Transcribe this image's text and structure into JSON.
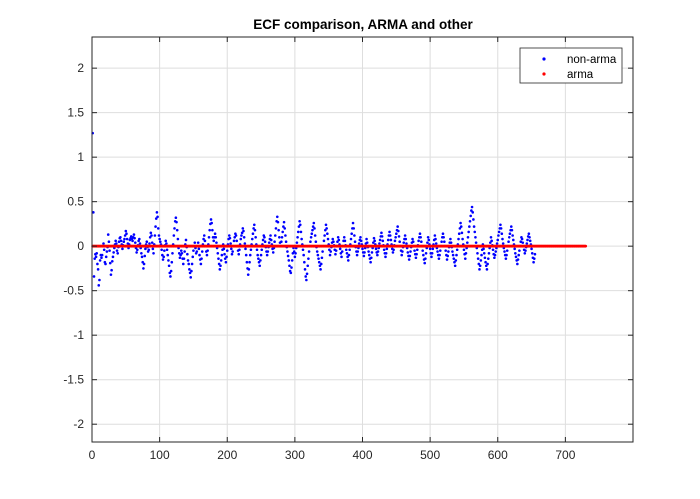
{
  "chart_data": {
    "type": "scatter",
    "title": "ECF comparison, ARMA and other",
    "xlabel": "",
    "ylabel": "",
    "xlim": [
      0,
      800
    ],
    "ylim": [
      -2.2,
      2.35
    ],
    "xticks": [
      0,
      100,
      200,
      300,
      400,
      500,
      600,
      700
    ],
    "yticks": [
      -2,
      -1.5,
      -1,
      -0.5,
      0,
      0.5,
      1,
      1.5,
      2
    ],
    "grid": true,
    "legend_position": "top-right",
    "series": [
      {
        "name": "non-arma",
        "color": "#0000ff",
        "marker": "dot",
        "x_start": 1,
        "x_step": 1,
        "values": [
          1.27,
          0.38,
          -0.34,
          -0.14,
          -0.09,
          -0.12,
          -0.08,
          -0.2,
          -0.26,
          -0.44,
          -0.38,
          -0.16,
          -0.1,
          -0.13,
          -0.1,
          0.0,
          0.03,
          -0.04,
          -0.18,
          -0.2,
          -0.12,
          -0.06,
          -0.01,
          0.13,
          0.05,
          -0.05,
          -0.19,
          -0.32,
          -0.27,
          -0.17,
          -0.12,
          -0.07,
          -0.02,
          0.02,
          0.06,
          0.03,
          -0.05,
          -0.08,
          -0.01,
          0.05,
          0.09,
          0.1,
          0.06,
          0.02,
          -0.03,
          0.01,
          0.05,
          0.08,
          0.12,
          0.17,
          0.14,
          0.08,
          0.03,
          -0.02,
          0.02,
          0.07,
          0.09,
          0.11,
          0.08,
          0.06,
          0.1,
          0.13,
          0.09,
          0.04,
          -0.02,
          -0.07,
          -0.04,
          0.01,
          0.06,
          0.08,
          0.03,
          -0.02,
          -0.08,
          -0.12,
          -0.18,
          -0.25,
          -0.2,
          -0.11,
          -0.03,
          0.02,
          0.05,
          -0.01,
          -0.06,
          -0.04,
          0.03,
          0.1,
          0.15,
          0.12,
          0.04,
          -0.03,
          -0.08,
          0.02,
          0.12,
          0.22,
          0.31,
          0.38,
          0.33,
          0.2,
          0.12,
          0.08,
          0.05,
          0.02,
          -0.04,
          -0.1,
          -0.15,
          -0.12,
          -0.05,
          0.01,
          0.06,
          0.03,
          -0.04,
          -0.1,
          -0.16,
          -0.22,
          -0.3,
          -0.34,
          -0.28,
          -0.18,
          -0.08,
          0.02,
          0.12,
          0.2,
          0.28,
          0.32,
          0.27,
          0.18,
          0.08,
          -0.02,
          -0.08,
          -0.13,
          -0.1,
          -0.05,
          -0.08,
          -0.14,
          -0.2,
          -0.14,
          -0.06,
          0.02,
          0.07,
          -0.01,
          -0.09,
          -0.16,
          -0.2,
          -0.26,
          -0.3,
          -0.35,
          -0.28,
          -0.2,
          -0.12,
          -0.05,
          0.0,
          0.04,
          -0.02,
          -0.08,
          -0.06,
          0.0,
          0.04,
          -0.03,
          -0.1,
          -0.15,
          -0.2,
          -0.14,
          -0.06,
          0.02,
          0.08,
          0.12,
          0.06,
          0.0,
          -0.06,
          -0.1,
          -0.05,
          0.02,
          0.1,
          0.18,
          0.25,
          0.3,
          0.26,
          0.18,
          0.1,
          0.06,
          0.1,
          0.14,
          0.1,
          0.04,
          -0.02,
          -0.08,
          -0.14,
          -0.2,
          -0.26,
          -0.22,
          -0.16,
          -0.1,
          -0.04,
          0.02,
          -0.03,
          -0.09,
          -0.14,
          -0.18,
          -0.12,
          -0.05,
          0.02,
          0.08,
          0.12,
          0.09,
          0.03,
          -0.03,
          -0.09,
          -0.06,
          0.0,
          0.06,
          0.1,
          0.14,
          0.12,
          0.06,
          0.0,
          -0.05,
          -0.09,
          -0.04,
          0.02,
          0.08,
          0.12,
          0.15,
          0.2,
          0.17,
          0.1,
          0.03,
          -0.03,
          -0.1,
          -0.18,
          -0.25,
          -0.32,
          -0.26,
          -0.18,
          -0.1,
          -0.04,
          0.02,
          0.08,
          0.14,
          0.2,
          0.24,
          0.18,
          0.1,
          0.02,
          -0.04,
          -0.1,
          -0.14,
          -0.18,
          -0.22,
          -0.16,
          -0.1,
          -0.04,
          0.02,
          0.07,
          0.12,
          0.1,
          0.05,
          -0.01,
          -0.06,
          -0.1,
          -0.06,
          -0.01,
          0.04,
          0.08,
          0.12,
          0.07,
          0.02,
          -0.03,
          -0.07,
          -0.02,
          0.05,
          0.12,
          0.2,
          0.28,
          0.33,
          0.27,
          0.18,
          0.1,
          0.04,
          0.0,
          0.05,
          0.1,
          0.16,
          0.22,
          0.27,
          0.2,
          0.12,
          0.05,
          -0.01,
          -0.06,
          -0.11,
          -0.16,
          -0.22,
          -0.28,
          -0.3,
          -0.24,
          -0.16,
          -0.08,
          -0.02,
          -0.06,
          -0.12,
          -0.08,
          -0.02,
          0.04,
          0.1,
          0.16,
          0.22,
          0.28,
          0.24,
          0.16,
          0.08,
          0.02,
          -0.04,
          -0.1,
          -0.18,
          -0.26,
          -0.34,
          -0.38,
          -0.31,
          -0.22,
          -0.14,
          -0.06,
          0.0,
          0.05,
          0.1,
          0.14,
          0.18,
          0.22,
          0.26,
          0.2,
          0.12,
          0.05,
          -0.01,
          -0.06,
          -0.1,
          -0.14,
          -0.18,
          -0.22,
          -0.26,
          -0.2,
          -0.13,
          -0.06,
          0.0,
          0.06,
          0.12,
          0.18,
          0.24,
          0.2,
          0.14,
          0.08,
          0.02,
          -0.04,
          -0.1,
          -0.06,
          -0.01,
          0.04,
          0.08,
          0.05,
          0.01,
          -0.04,
          -0.09,
          -0.05,
          0.0,
          0.05,
          0.1,
          0.07,
          0.02,
          -0.03,
          -0.08,
          -0.12,
          -0.06,
          0.0,
          0.06,
          0.1,
          0.06,
          0.01,
          -0.04,
          -0.08,
          -0.12,
          -0.16,
          -0.1,
          -0.04,
          0.02,
          0.08,
          0.14,
          0.2,
          0.26,
          0.2,
          0.12,
          0.05,
          -0.01,
          -0.06,
          -0.1,
          -0.06,
          -0.02,
          0.03,
          0.07,
          0.1,
          0.06,
          0.02,
          -0.03,
          -0.07,
          -0.11,
          -0.07,
          -0.02,
          0.03,
          0.08,
          0.04,
          -0.01,
          -0.06,
          -0.1,
          -0.14,
          -0.18,
          -0.13,
          -0.07,
          -0.02,
          0.04,
          0.09,
          0.06,
          0.02,
          -0.03,
          -0.07,
          -0.1,
          -0.06,
          -0.02,
          0.03,
          0.07,
          0.11,
          0.15,
          0.11,
          0.06,
          0.01,
          -0.04,
          -0.08,
          -0.12,
          -0.08,
          -0.03,
          0.02,
          0.07,
          0.12,
          0.16,
          0.12,
          0.07,
          0.02,
          -0.03,
          -0.07,
          -0.04,
          0.01,
          0.06,
          0.1,
          0.14,
          0.18,
          0.22,
          0.17,
          0.11,
          0.05,
          0.0,
          -0.05,
          -0.1,
          -0.06,
          -0.01,
          0.04,
          0.08,
          0.12,
          0.08,
          0.03,
          -0.02,
          -0.07,
          -0.11,
          -0.15,
          -0.11,
          -0.06,
          -0.01,
          0.04,
          0.08,
          0.05,
          0.0,
          -0.05,
          -0.09,
          -0.13,
          -0.09,
          -0.04,
          0.01,
          0.06,
          0.1,
          0.14,
          0.1,
          0.05,
          0.0,
          -0.05,
          -0.1,
          -0.15,
          -0.19,
          -0.14,
          -0.08,
          -0.02,
          0.04,
          0.1,
          0.07,
          0.02,
          -0.03,
          -0.08,
          -0.12,
          -0.08,
          -0.03,
          0.02,
          0.07,
          0.12,
          0.08,
          0.03,
          -0.02,
          -0.06,
          -0.1,
          -0.14,
          -0.1,
          -0.05,
          0.0,
          0.05,
          0.1,
          0.14,
          0.1,
          0.05,
          0.0,
          -0.05,
          -0.1,
          -0.15,
          -0.11,
          -0.06,
          -0.01,
          0.04,
          0.08,
          0.04,
          -0.01,
          -0.06,
          -0.1,
          -0.14,
          -0.18,
          -0.22,
          -0.16,
          -0.1,
          -0.04,
          0.02,
          0.08,
          0.14,
          0.2,
          0.26,
          0.22,
          0.15,
          0.08,
          0.02,
          -0.04,
          -0.09,
          -0.14,
          -0.08,
          -0.02,
          0.04,
          0.1,
          0.16,
          0.22,
          0.28,
          0.34,
          0.4,
          0.44,
          0.38,
          0.3,
          0.22,
          0.16,
          0.1,
          0.04,
          -0.02,
          -0.08,
          -0.14,
          -0.2,
          -0.26,
          -0.22,
          -0.16,
          -0.1,
          -0.04,
          0.02,
          -0.03,
          -0.08,
          -0.13,
          -0.18,
          -0.22,
          -0.26,
          -0.2,
          -0.14,
          -0.08,
          -0.02,
          0.04,
          0.1,
          0.06,
          0.01,
          -0.04,
          -0.09,
          -0.13,
          -0.1,
          -0.06,
          -0.02,
          0.03,
          0.07,
          0.12,
          0.16,
          0.2,
          0.24,
          0.2,
          0.14,
          0.08,
          0.03,
          -0.02,
          -0.06,
          -0.1,
          -0.14,
          -0.1,
          -0.05,
          0.0,
          0.05,
          0.1,
          0.14,
          0.18,
          0.22,
          0.18,
          0.12,
          0.07,
          0.02,
          -0.03,
          -0.08,
          -0.12,
          -0.16,
          -0.2,
          -0.15,
          -0.1,
          -0.05,
          0.0,
          0.05,
          0.1,
          0.08,
          0.04,
          0.0,
          -0.04,
          -0.08,
          -0.05,
          -0.01,
          0.03,
          0.07,
          0.11,
          0.14,
          0.1,
          0.06,
          0.02,
          -0.03,
          -0.08,
          -0.13,
          -0.18,
          -0.14,
          -0.09
        ]
      },
      {
        "name": "arma",
        "color": "#ff0000",
        "marker": "dot",
        "x_start": 1,
        "x_end": 730,
        "constant_value": 0.0
      }
    ]
  }
}
